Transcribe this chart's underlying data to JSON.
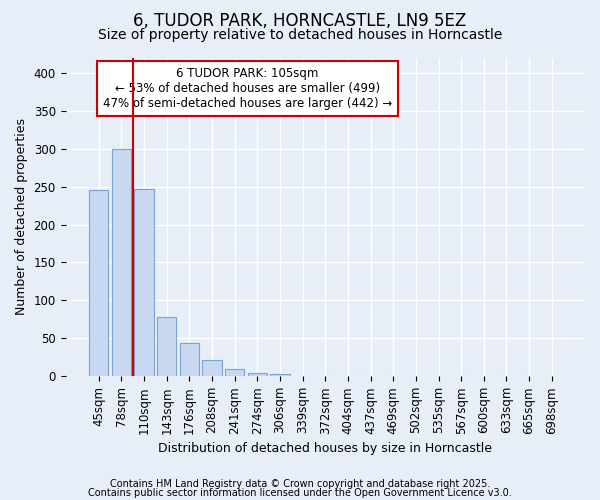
{
  "title1": "6, TUDOR PARK, HORNCASTLE, LN9 5EZ",
  "title2": "Size of property relative to detached houses in Horncastle",
  "xlabel": "Distribution of detached houses by size in Horncastle",
  "ylabel": "Number of detached properties",
  "categories": [
    "45sqm",
    "78sqm",
    "110sqm",
    "143sqm",
    "176sqm",
    "208sqm",
    "241sqm",
    "274sqm",
    "306sqm",
    "339sqm",
    "372sqm",
    "404sqm",
    "437sqm",
    "469sqm",
    "502sqm",
    "535sqm",
    "567sqm",
    "600sqm",
    "633sqm",
    "665sqm",
    "698sqm"
  ],
  "values": [
    245,
    300,
    247,
    78,
    44,
    22,
    9,
    5,
    3,
    0,
    0,
    0,
    0,
    0,
    0,
    0,
    0,
    0,
    0,
    0,
    1
  ],
  "bar_color": "#c8d8f0",
  "bar_edgecolor": "#7ba4d4",
  "vline_color": "#cc0000",
  "vline_pos": 1.5,
  "ylim": [
    0,
    420
  ],
  "yticks": [
    0,
    50,
    100,
    150,
    200,
    250,
    300,
    350,
    400
  ],
  "annotation_text": "6 TUDOR PARK: 105sqm\n← 53% of detached houses are smaller (499)\n47% of semi-detached houses are larger (442) →",
  "annotation_box_color": "#ffffff",
  "annotation_edge_color": "#cc0000",
  "footer1": "Contains HM Land Registry data © Crown copyright and database right 2025.",
  "footer2": "Contains public sector information licensed under the Open Government Licence v3.0.",
  "background_color": "#e8eef8",
  "grid_color": "#ffffff",
  "title1_fontsize": 12,
  "title2_fontsize": 10,
  "axis_fontsize": 9,
  "tick_fontsize": 8.5,
  "annotation_fontsize": 8.5,
  "footer_fontsize": 7
}
